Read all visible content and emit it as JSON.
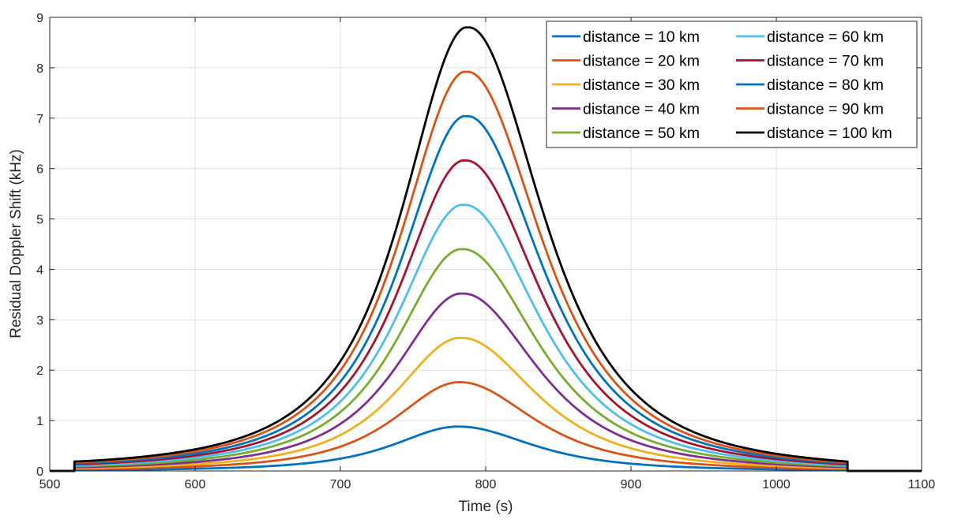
{
  "chart_data": {
    "type": "line",
    "title": "",
    "xlabel": "Time (s)",
    "ylabel": "Residual Doppler Shift (kHz)",
    "xlim": [
      500,
      1100
    ],
    "ylim": [
      0,
      9
    ],
    "xticks": [
      500,
      600,
      700,
      800,
      900,
      1000,
      1100
    ],
    "yticks": [
      0,
      1,
      2,
      3,
      4,
      5,
      6,
      7,
      8,
      9
    ],
    "grid": true,
    "legend_position": "top-right",
    "signal_window": [
      517,
      1049
    ],
    "series": [
      {
        "name": "distance = 10 km",
        "color": "#0072BD",
        "peak_time": 782,
        "peak_value": 0.88,
        "value_at_start": 0.018,
        "value_at_end": 0.018,
        "halfwidth_left": 68,
        "halfwidth_right": 78
      },
      {
        "name": "distance = 20 km",
        "color": "#D95319",
        "peak_time": 783,
        "peak_value": 1.76,
        "value_at_start": 0.037,
        "value_at_end": 0.036,
        "halfwidth_left": 68,
        "halfwidth_right": 78
      },
      {
        "name": "distance = 30 km",
        "color": "#EDB120",
        "peak_time": 784,
        "peak_value": 2.64,
        "value_at_start": 0.056,
        "value_at_end": 0.055,
        "halfwidth_left": 68,
        "halfwidth_right": 78
      },
      {
        "name": "distance = 40 km",
        "color": "#7E2F8E",
        "peak_time": 785,
        "peak_value": 3.52,
        "value_at_start": 0.075,
        "value_at_end": 0.074,
        "halfwidth_left": 68,
        "halfwidth_right": 78
      },
      {
        "name": "distance = 50 km",
        "color": "#77AC30",
        "peak_time": 785,
        "peak_value": 4.4,
        "value_at_start": 0.094,
        "value_at_end": 0.092,
        "halfwidth_left": 68,
        "halfwidth_right": 78
      },
      {
        "name": "distance = 60 km",
        "color": "#4DBEEE",
        "peak_time": 786,
        "peak_value": 5.28,
        "value_at_start": 0.113,
        "value_at_end": 0.111,
        "halfwidth_left": 68,
        "halfwidth_right": 78
      },
      {
        "name": "distance = 70 km",
        "color": "#A2142F",
        "peak_time": 787,
        "peak_value": 6.16,
        "value_at_start": 0.131,
        "value_at_end": 0.129,
        "halfwidth_left": 68,
        "halfwidth_right": 78
      },
      {
        "name": "distance = 80 km",
        "color": "#0072BD",
        "peak_time": 788,
        "peak_value": 7.04,
        "value_at_start": 0.15,
        "value_at_end": 0.148,
        "halfwidth_left": 68,
        "halfwidth_right": 78
      },
      {
        "name": "distance = 90 km",
        "color": "#D95319",
        "peak_time": 788,
        "peak_value": 7.92,
        "value_at_start": 0.169,
        "value_at_end": 0.166,
        "halfwidth_left": 68,
        "halfwidth_right": 78
      },
      {
        "name": "distance = 100 km",
        "color": "#000000",
        "peak_time": 789,
        "peak_value": 8.8,
        "value_at_start": 0.188,
        "value_at_end": 0.185,
        "halfwidth_left": 68,
        "halfwidth_right": 78
      }
    ]
  }
}
